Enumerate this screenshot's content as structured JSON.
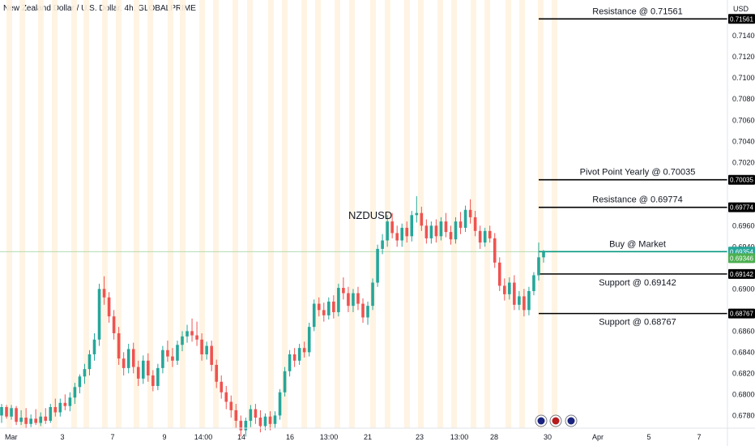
{
  "header": {
    "title": "New Zealand Dollar / U.S. Dollar, 4h, GLOBALPRIME",
    "currency": "USD"
  },
  "chart_data": {
    "type": "candlestick",
    "symbol_label": "NZDUSD",
    "ylim": [
      0.6768,
      0.7174
    ],
    "y_ticks": [
      "0.71400",
      "0.71200",
      "0.71000",
      "0.70800",
      "0.70600",
      "0.70400",
      "0.70200",
      "0.69600",
      "0.69400",
      "0.69000",
      "0.68600",
      "0.68400",
      "0.68200",
      "0.68000",
      "0.67800"
    ],
    "x_ticks": [
      "Mar",
      "3",
      "7",
      "9",
      "14:00",
      "14",
      "16",
      "13:00",
      "21",
      "23",
      "13:00",
      "28",
      "30",
      "Apr",
      "5",
      "7"
    ],
    "levels": [
      {
        "label": "Resistance @ 0.71561",
        "value": 0.71561,
        "tag": "0.71561",
        "color": "#000000",
        "tag_color": "#000000"
      },
      {
        "label": "Pivot Point Yearly @ 0.70035",
        "value": 0.70035,
        "tag": "0.70035",
        "color": "#000000",
        "tag_color": "#000000"
      },
      {
        "label": "Resistance @ 0.69774",
        "value": 0.69774,
        "tag": "0.69774",
        "color": "#000000",
        "tag_color": "#000000"
      },
      {
        "label": "Buy @ Market",
        "value": 0.69354,
        "tag": "0.69354",
        "color": "#089981",
        "tag_color": "#26a69a"
      },
      {
        "label": "Support @ 0.69142",
        "value": 0.69142,
        "tag": "0.69142",
        "color": "#000000",
        "tag_color": "#000000"
      },
      {
        "label": "Support @ 0.68767",
        "value": 0.68767,
        "tag": "0.68767",
        "color": "#000000",
        "tag_color": "#000000"
      }
    ],
    "last_price_tag": {
      "value": 0.69346,
      "tag": "0.69346",
      "color": "#4caf50"
    },
    "candles": [
      [
        0.678,
        0.6791,
        0.6773,
        0.6788
      ],
      [
        0.6788,
        0.679,
        0.6777,
        0.6779
      ],
      [
        0.6779,
        0.679,
        0.6776,
        0.6787
      ],
      [
        0.6787,
        0.6789,
        0.6771,
        0.6774
      ],
      [
        0.6774,
        0.6785,
        0.6771,
        0.6778
      ],
      [
        0.6778,
        0.6787,
        0.6768,
        0.6772
      ],
      [
        0.6772,
        0.6781,
        0.6769,
        0.6777
      ],
      [
        0.6777,
        0.6786,
        0.6771,
        0.6773
      ],
      [
        0.6773,
        0.6783,
        0.677,
        0.6779
      ],
      [
        0.6779,
        0.6787,
        0.6772,
        0.6775
      ],
      [
        0.6775,
        0.6791,
        0.6773,
        0.6788
      ],
      [
        0.6788,
        0.6796,
        0.6779,
        0.6783
      ],
      [
        0.6783,
        0.6796,
        0.6779,
        0.6792
      ],
      [
        0.6792,
        0.68,
        0.6785,
        0.6789
      ],
      [
        0.6789,
        0.6802,
        0.6784,
        0.6797
      ],
      [
        0.6797,
        0.6811,
        0.6791,
        0.6807
      ],
      [
        0.6807,
        0.6819,
        0.6801,
        0.6817
      ],
      [
        0.6817,
        0.6829,
        0.681,
        0.6824
      ],
      [
        0.6824,
        0.6842,
        0.6818,
        0.6838
      ],
      [
        0.6838,
        0.6858,
        0.6832,
        0.6852
      ],
      [
        0.6852,
        0.6905,
        0.6846,
        0.69
      ],
      [
        0.69,
        0.6912,
        0.6885,
        0.6892
      ],
      [
        0.6892,
        0.6897,
        0.6868,
        0.6874
      ],
      [
        0.6874,
        0.688,
        0.6852,
        0.6858
      ],
      [
        0.6858,
        0.6864,
        0.6828,
        0.6834
      ],
      [
        0.6834,
        0.684,
        0.6818,
        0.6825
      ],
      [
        0.6825,
        0.6848,
        0.682,
        0.6843
      ],
      [
        0.6843,
        0.6849,
        0.682,
        0.6826
      ],
      [
        0.6826,
        0.6832,
        0.6808,
        0.6815
      ],
      [
        0.6815,
        0.6837,
        0.681,
        0.6832
      ],
      [
        0.6832,
        0.6839,
        0.6812,
        0.6818
      ],
      [
        0.6818,
        0.6823,
        0.6803,
        0.6808
      ],
      [
        0.6808,
        0.6829,
        0.6804,
        0.6825
      ],
      [
        0.6825,
        0.6846,
        0.682,
        0.6842
      ],
      [
        0.6842,
        0.6851,
        0.6831,
        0.6836
      ],
      [
        0.6836,
        0.6844,
        0.6826,
        0.6832
      ],
      [
        0.6832,
        0.6851,
        0.6828,
        0.6847
      ],
      [
        0.6847,
        0.686,
        0.6841,
        0.6855
      ],
      [
        0.6855,
        0.6866,
        0.6849,
        0.686
      ],
      [
        0.686,
        0.6872,
        0.685,
        0.6856
      ],
      [
        0.6856,
        0.6869,
        0.6846,
        0.6852
      ],
      [
        0.6852,
        0.6858,
        0.6832,
        0.6838
      ],
      [
        0.6838,
        0.685,
        0.6833,
        0.6846
      ],
      [
        0.6846,
        0.6851,
        0.6822,
        0.6828
      ],
      [
        0.6828,
        0.6833,
        0.6806,
        0.6812
      ],
      [
        0.6812,
        0.6818,
        0.6796,
        0.6802
      ],
      [
        0.6802,
        0.6808,
        0.6786,
        0.6793
      ],
      [
        0.6793,
        0.6799,
        0.6778,
        0.6785
      ],
      [
        0.6785,
        0.6791,
        0.6768,
        0.6775
      ],
      [
        0.6775,
        0.678,
        0.676,
        0.6766
      ],
      [
        0.6766,
        0.6778,
        0.676,
        0.6775
      ],
      [
        0.6775,
        0.679,
        0.6769,
        0.6786
      ],
      [
        0.6786,
        0.6791,
        0.6772,
        0.6778
      ],
      [
        0.6778,
        0.6785,
        0.6764,
        0.677
      ],
      [
        0.677,
        0.6782,
        0.6766,
        0.6779
      ],
      [
        0.6779,
        0.6784,
        0.6766,
        0.6772
      ],
      [
        0.6772,
        0.6784,
        0.6768,
        0.678
      ],
      [
        0.678,
        0.6805,
        0.6776,
        0.6802
      ],
      [
        0.6802,
        0.6826,
        0.6798,
        0.6822
      ],
      [
        0.6822,
        0.6842,
        0.6817,
        0.6838
      ],
      [
        0.6838,
        0.6844,
        0.6826,
        0.6832
      ],
      [
        0.6832,
        0.6848,
        0.6828,
        0.6844
      ],
      [
        0.6844,
        0.685,
        0.6835,
        0.684
      ],
      [
        0.684,
        0.6868,
        0.6836,
        0.6864
      ],
      [
        0.6864,
        0.689,
        0.686,
        0.6886
      ],
      [
        0.6886,
        0.6892,
        0.6874,
        0.688
      ],
      [
        0.688,
        0.6887,
        0.6869,
        0.6875
      ],
      [
        0.6875,
        0.6892,
        0.6871,
        0.6888
      ],
      [
        0.6888,
        0.6894,
        0.6872,
        0.6878
      ],
      [
        0.6878,
        0.6905,
        0.6874,
        0.6901
      ],
      [
        0.6901,
        0.6911,
        0.689,
        0.6896
      ],
      [
        0.6896,
        0.6902,
        0.6878,
        0.6884
      ],
      [
        0.6884,
        0.69,
        0.6878,
        0.6896
      ],
      [
        0.6896,
        0.6902,
        0.688,
        0.6886
      ],
      [
        0.6886,
        0.6891,
        0.6868,
        0.6873
      ],
      [
        0.6873,
        0.6888,
        0.6866,
        0.6884
      ],
      [
        0.6884,
        0.691,
        0.688,
        0.6906
      ],
      [
        0.6906,
        0.6942,
        0.6902,
        0.6938
      ],
      [
        0.6938,
        0.6952,
        0.6933,
        0.6946
      ],
      [
        0.6946,
        0.697,
        0.694,
        0.6964
      ],
      [
        0.6964,
        0.6972,
        0.6948,
        0.6953
      ],
      [
        0.6953,
        0.696,
        0.694,
        0.6946
      ],
      [
        0.6946,
        0.6962,
        0.694,
        0.6958
      ],
      [
        0.6958,
        0.6964,
        0.6944,
        0.695
      ],
      [
        0.695,
        0.6974,
        0.6945,
        0.697
      ],
      [
        0.697,
        0.6988,
        0.6963,
        0.6972
      ],
      [
        0.6972,
        0.6978,
        0.6955,
        0.696
      ],
      [
        0.696,
        0.6966,
        0.6943,
        0.6948
      ],
      [
        0.6948,
        0.6964,
        0.6943,
        0.696
      ],
      [
        0.696,
        0.6966,
        0.6944,
        0.695
      ],
      [
        0.695,
        0.6968,
        0.6946,
        0.6964
      ],
      [
        0.6964,
        0.6972,
        0.6949,
        0.6954
      ],
      [
        0.6954,
        0.696,
        0.6942,
        0.6947
      ],
      [
        0.6947,
        0.6968,
        0.6943,
        0.6964
      ],
      [
        0.6964,
        0.6973,
        0.6952,
        0.6958
      ],
      [
        0.6958,
        0.6979,
        0.6954,
        0.6975
      ],
      [
        0.6975,
        0.6985,
        0.6962,
        0.6968
      ],
      [
        0.6968,
        0.6974,
        0.695,
        0.6955
      ],
      [
        0.6955,
        0.696,
        0.6938,
        0.6944
      ],
      [
        0.6944,
        0.6958,
        0.694,
        0.6955
      ],
      [
        0.6955,
        0.696,
        0.6944,
        0.6948
      ],
      [
        0.6948,
        0.6953,
        0.692,
        0.6925
      ],
      [
        0.6925,
        0.693,
        0.6898,
        0.6903
      ],
      [
        0.6903,
        0.691,
        0.6889,
        0.6895
      ],
      [
        0.6895,
        0.6911,
        0.689,
        0.6906
      ],
      [
        0.6906,
        0.6913,
        0.688,
        0.6885
      ],
      [
        0.6885,
        0.6898,
        0.688,
        0.6893
      ],
      [
        0.6893,
        0.69,
        0.6874,
        0.688
      ],
      [
        0.688,
        0.6902,
        0.6875,
        0.6898
      ],
      [
        0.6898,
        0.6916,
        0.6894,
        0.6913
      ],
      [
        0.6913,
        0.6944,
        0.6908,
        0.693
      ],
      [
        0.693,
        0.6937,
        0.6925,
        0.6935
      ]
    ]
  }
}
